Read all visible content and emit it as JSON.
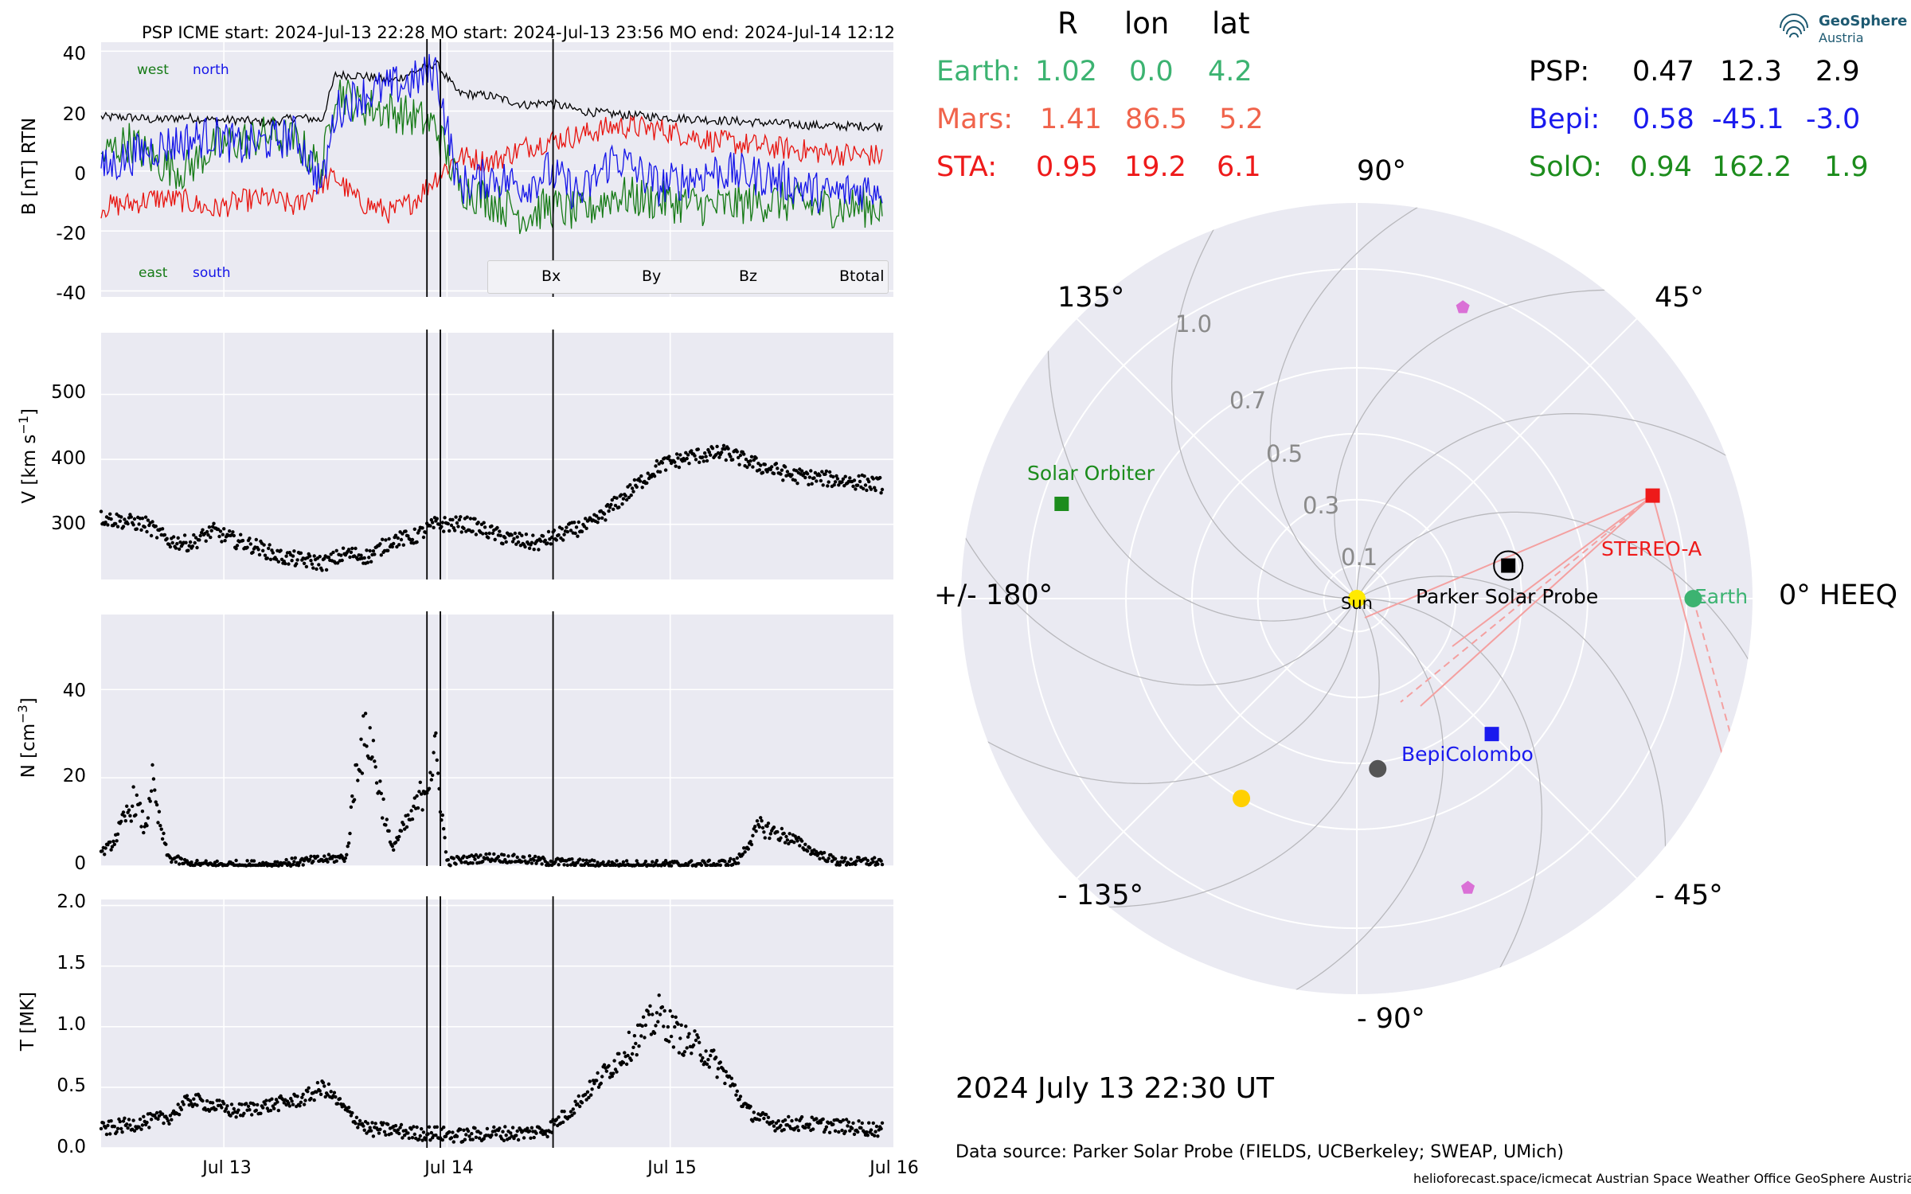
{
  "title_line": "PSP    ICME start: 2024-Jul-13 22:28   MO start: 2024-Jul-13 23:56   MO end: 2024-Jul-14 12:12",
  "colors": {
    "Bx": "#e8140f",
    "By": "#157a15",
    "Bz": "#1515e8",
    "Btotal": "#000000",
    "earth": "#3cb371",
    "mars": "#f0634b",
    "sta": "#ee1a1a",
    "psp": "#000000",
    "bepi": "#1a1aee",
    "solo": "#1c8c1c",
    "panel_bg": "#eaeaf2"
  },
  "chart_data": [
    {
      "type": "line",
      "ylabel": "B [nT] RTN",
      "ylim": [
        -42,
        43
      ],
      "yticks": [
        "40",
        "20",
        "0",
        "-20",
        "-40"
      ],
      "annotations": {
        "west": "west",
        "north": "north",
        "east": "east",
        "south": "south"
      },
      "legend": [
        "Bx",
        "By",
        "Bz",
        "Btotal"
      ],
      "series": [
        {
          "name": "Btotal",
          "x_days": [
            0,
            0.25,
            0.5,
            0.75,
            1.0,
            1.25,
            1.5,
            1.75,
            1.98,
            2.1,
            2.3,
            2.6,
            2.8,
            3.0,
            3.2,
            3.5,
            3.8,
            4.0,
            4.3,
            4.6,
            5.0,
            5.5,
            6.0,
            6.5,
            7.0
          ],
          "values": [
            18,
            18,
            17,
            18,
            17,
            17,
            16,
            18,
            17,
            32,
            32,
            30,
            33,
            36,
            26,
            25,
            22,
            23,
            20,
            19,
            18,
            17,
            16,
            15,
            15
          ]
        },
        {
          "name": "Bx",
          "x_days": [
            0,
            0.25,
            0.5,
            0.75,
            1.0,
            1.25,
            1.5,
            1.75,
            1.98,
            2.1,
            2.3,
            2.6,
            2.8,
            3.0,
            3.2,
            3.5,
            3.8,
            4.0,
            4.3,
            4.6,
            5.0,
            5.5,
            6.0,
            6.5,
            7.0
          ],
          "values": [
            -12,
            -11,
            -9,
            -10,
            -13,
            -10,
            -9,
            -12,
            -4,
            -2,
            -10,
            -14,
            -10,
            -2,
            5,
            3,
            8,
            10,
            12,
            15,
            14,
            10,
            8,
            6,
            5
          ]
        },
        {
          "name": "By",
          "x_days": [
            0,
            0.25,
            0.5,
            0.75,
            1.0,
            1.25,
            1.5,
            1.75,
            1.98,
            2.1,
            2.3,
            2.6,
            2.8,
            3.0,
            3.2,
            3.5,
            3.8,
            4.0,
            4.3,
            4.6,
            5.0,
            5.5,
            6.0,
            6.5,
            7.0
          ],
          "values": [
            5,
            10,
            3,
            0,
            8,
            10,
            12,
            10,
            0,
            28,
            22,
            20,
            18,
            15,
            -5,
            -10,
            -15,
            -12,
            -14,
            -8,
            -10,
            -12,
            -10,
            -12,
            -12
          ]
        },
        {
          "name": "Bz",
          "x_days": [
            0,
            0.25,
            0.5,
            0.75,
            1.0,
            1.25,
            1.5,
            1.75,
            1.98,
            2.1,
            2.3,
            2.6,
            2.8,
            3.0,
            3.2,
            3.5,
            3.8,
            4.0,
            4.3,
            4.6,
            5.0,
            5.5,
            6.0,
            6.5,
            7.0
          ],
          "values": [
            0,
            5,
            8,
            10,
            12,
            8,
            10,
            12,
            -5,
            20,
            25,
            28,
            30,
            34,
            -5,
            -2,
            -5,
            0,
            -8,
            5,
            -5,
            0,
            -2,
            -8,
            -5
          ]
        }
      ]
    },
    {
      "type": "scatter",
      "ylabel": "V [km s$^{-1}$]",
      "ylim": [
        215,
        595
      ],
      "yticks": [
        "500",
        "400",
        "300"
      ],
      "series": [
        {
          "name": "",
          "x_days": [
            0,
            0.2,
            0.4,
            0.6,
            0.8,
            1.0,
            1.2,
            1.4,
            1.6,
            1.8,
            2.0,
            2.2,
            2.4,
            2.6,
            2.8,
            3.0,
            3.3,
            3.6,
            3.9,
            4.2,
            4.4,
            4.6,
            4.8,
            5.0,
            5.3,
            5.6,
            5.9,
            6.2,
            6.5,
            6.8,
            7.0
          ],
          "values": [
            310,
            305,
            300,
            275,
            270,
            290,
            275,
            265,
            250,
            245,
            240,
            255,
            250,
            275,
            280,
            300,
            300,
            280,
            270,
            290,
            300,
            330,
            360,
            390,
            405,
            410,
            390,
            375,
            370,
            365,
            360
          ]
        }
      ]
    },
    {
      "type": "scatter",
      "ylabel": "N [cm$^{-3}$]",
      "ylim": [
        0,
        57
      ],
      "yticks": [
        "40",
        "20",
        "0"
      ],
      "series": [
        {
          "name": "",
          "x_days": [
            0,
            0.1,
            0.2,
            0.3,
            0.4,
            0.45,
            0.5,
            0.6,
            0.8,
            1.0,
            1.5,
            2.2,
            2.3,
            2.4,
            2.6,
            2.8,
            2.9,
            3.0,
            3.1,
            3.5,
            4.0,
            4.5,
            5.0,
            5.5,
            5.7,
            5.9,
            6.0,
            6.2,
            6.4,
            6.6,
            7.0
          ],
          "values": [
            3,
            5,
            10,
            15,
            8,
            20,
            12,
            2,
            0.3,
            0.3,
            0.3,
            2,
            25,
            30,
            4,
            12,
            18,
            25,
            1,
            2,
            1,
            0.3,
            0.3,
            0.3,
            1,
            9,
            8,
            6,
            3,
            1,
            1
          ]
        }
      ]
    },
    {
      "type": "scatter",
      "ylabel": "T [MK]",
      "ylim": [
        0,
        2.05
      ],
      "yticks": [
        "2.0",
        "1.5",
        "1.0",
        "0.5",
        "0.0"
      ],
      "series": [
        {
          "name": "",
          "x_days": [
            0,
            0.3,
            0.6,
            0.8,
            1.0,
            1.2,
            1.5,
            1.8,
            2.0,
            2.2,
            2.4,
            2.6,
            2.8,
            3.0,
            3.2,
            3.5,
            3.8,
            4.0,
            4.2,
            4.4,
            4.6,
            4.8,
            5.0,
            5.2,
            5.4,
            5.6,
            5.8,
            6.0,
            6.3,
            6.6,
            7.0
          ],
          "values": [
            0.15,
            0.2,
            0.25,
            0.4,
            0.35,
            0.3,
            0.35,
            0.4,
            0.5,
            0.3,
            0.15,
            0.15,
            0.12,
            0.12,
            0.1,
            0.12,
            0.12,
            0.15,
            0.3,
            0.5,
            0.7,
            0.9,
            1.1,
            0.9,
            0.8,
            0.6,
            0.3,
            0.2,
            0.2,
            0.18,
            0.15
          ]
        }
      ]
    }
  ],
  "x_axis": {
    "ticks": [
      {
        "label": "Jul 13",
        "day": 1.1
      },
      {
        "label": "Jul 14",
        "day": 3.1
      },
      {
        "label": "Jul 15",
        "day": 5.1
      },
      {
        "label": "Jul 16",
        "day": 7.1
      }
    ],
    "vlines_days": [
      2.92,
      3.04,
      4.05
    ]
  },
  "table": {
    "headers": [
      "R",
      "lon",
      "lat"
    ],
    "left": [
      {
        "name": "Earth:",
        "R": "1.02",
        "lon": "0.0",
        "lat": "4.2"
      },
      {
        "name": "Mars:",
        "R": "1.41",
        "lon": "86.5",
        "lat": "5.2"
      },
      {
        "name": "STA:",
        "R": "0.95",
        "lon": "19.2",
        "lat": "6.1"
      }
    ],
    "right": [
      {
        "name": "PSP:",
        "R": "0.47",
        "lon": "12.3",
        "lat": "2.9"
      },
      {
        "name": "Bepi:",
        "R": "0.58",
        "lon": "-45.1",
        "lat": "-3.0"
      },
      {
        "name": "SolO:",
        "R": "0.94",
        "lon": "162.2",
        "lat": "1.9"
      }
    ]
  },
  "polar": {
    "angle_labels": {
      "a90": "90°",
      "a45": "45°",
      "a135": "135°",
      "a0": "0° HEEQ",
      "a180": "+/- 180°",
      "am45": "- 45°",
      "am135": "- 135°",
      "am90": "- 90°"
    },
    "radial_labels": [
      "1.0",
      "0.7",
      "0.5",
      "0.3",
      "0.1"
    ],
    "radial_values": [
      1.0,
      0.7,
      0.5,
      0.3,
      0.1
    ],
    "objects": [
      {
        "label": "Sun",
        "r": 0.0,
        "lon": 0.0,
        "color": "#ffea00",
        "marker": "circle"
      },
      {
        "label": "Earth",
        "r": 1.02,
        "lon": 0.0,
        "color": "#3cb371",
        "marker": "circle"
      },
      {
        "label": "STEREO-A",
        "r": 0.95,
        "lon": 19.2,
        "color": "#ee1a1a",
        "marker": "square"
      },
      {
        "label": "Parker Solar Probe",
        "r": 0.47,
        "lon": 12.3,
        "color": "#000000",
        "marker": "square"
      },
      {
        "label": "BepiColombo",
        "r": 0.58,
        "lon": -45.1,
        "color": "#1a1aee",
        "marker": "square"
      },
      {
        "label": "Solar Orbiter",
        "r": 0.94,
        "lon": 162.2,
        "color": "#1c8c1c",
        "marker": "square"
      },
      {
        "label": "",
        "r": 0.7,
        "lon": -120.0,
        "color": "#ffd000",
        "marker": "circle"
      },
      {
        "label": "",
        "r": 0.52,
        "lon": -83.0,
        "color": "#555555",
        "marker": "circle"
      },
      {
        "label": "",
        "r": 0.94,
        "lon": 70.0,
        "color": "#da70d6",
        "marker": "pentagon"
      },
      {
        "label": "",
        "r": 0.94,
        "lon": -69.0,
        "color": "#da70d6",
        "marker": "pentagon"
      }
    ]
  },
  "datetime": "2024 July 13  22:30 UT",
  "data_source": "Data source: Parker Solar Probe (FIELDS, UCBerkeley; SWEAP, UMich)",
  "footer_credits": "helioforecast.space/icmecat   Austrian Space Weather Office   GeoSphere Austria",
  "logo": {
    "line1": "GeoSphere",
    "line2": "Austria"
  }
}
